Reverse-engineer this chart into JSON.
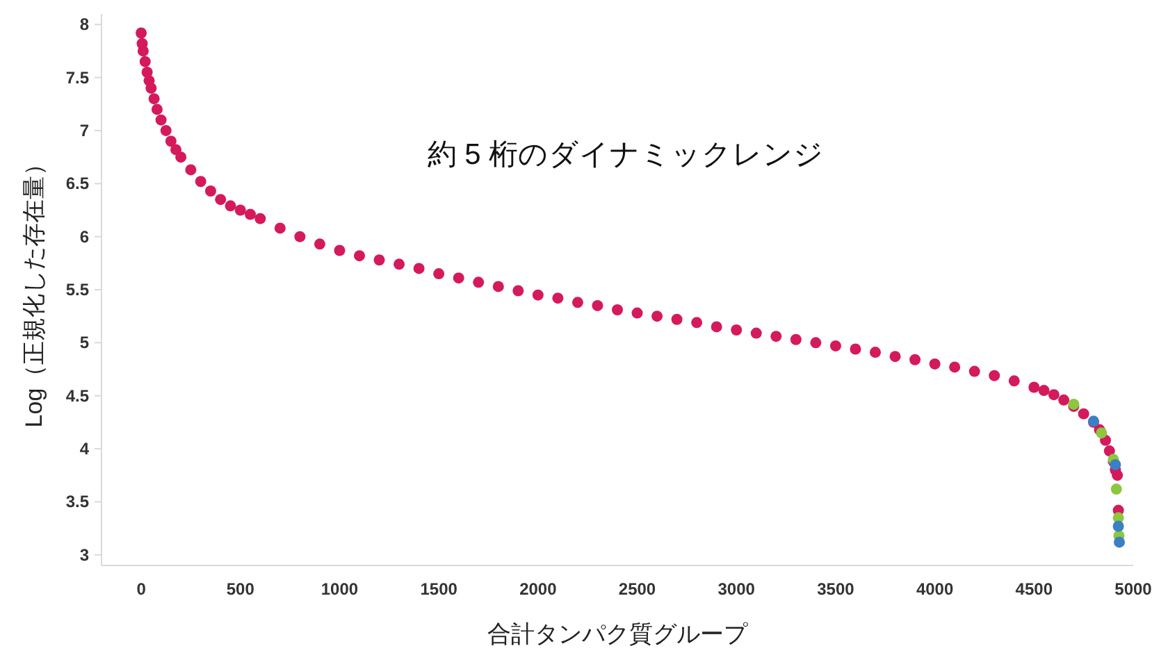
{
  "chart_data": {
    "type": "scatter",
    "xlabel": "合計タンパク質グループ",
    "ylabel": "Log（正規化した存在量）",
    "annotations": [
      "約 5 桁のダイナミックレンジ"
    ],
    "xlim": [
      -200,
      5000
    ],
    "ylim": [
      2.9,
      8.1
    ],
    "xticks": [
      0,
      500,
      1000,
      1500,
      2000,
      2500,
      3000,
      3500,
      4000,
      4500,
      5000
    ],
    "yticks": [
      3,
      3.5,
      4,
      4.5,
      5,
      5.5,
      6,
      6.5,
      7,
      7.5,
      8
    ],
    "grid": false,
    "marker": "circle",
    "series": [
      {
        "color": "#d41a5c",
        "x": [
          0,
          5,
          10,
          20,
          30,
          40,
          50,
          65,
          80,
          100,
          125,
          150,
          175,
          200,
          250,
          300,
          350,
          400,
          450,
          500,
          550,
          600,
          700,
          800,
          900,
          1000,
          1100,
          1200,
          1300,
          1400,
          1500,
          1600,
          1700,
          1800,
          1900,
          2000,
          2100,
          2200,
          2300,
          2400,
          2500,
          2600,
          2700,
          2800,
          2900,
          3000,
          3100,
          3200,
          3300,
          3400,
          3500,
          3600,
          3700,
          3800,
          3900,
          4000,
          4100,
          4200,
          4300,
          4400,
          4500,
          4550,
          4600,
          4650,
          4700,
          4750,
          4800,
          4830,
          4860,
          4880,
          4900,
          4910,
          4920,
          4925
        ],
        "values": [
          7.92,
          7.82,
          7.75,
          7.65,
          7.55,
          7.47,
          7.4,
          7.3,
          7.2,
          7.1,
          7.0,
          6.9,
          6.82,
          6.75,
          6.63,
          6.52,
          6.43,
          6.35,
          6.29,
          6.25,
          6.21,
          6.17,
          6.08,
          6.0,
          5.93,
          5.87,
          5.82,
          5.78,
          5.74,
          5.7,
          5.65,
          5.61,
          5.57,
          5.53,
          5.49,
          5.45,
          5.42,
          5.38,
          5.35,
          5.31,
          5.28,
          5.25,
          5.22,
          5.19,
          5.15,
          5.12,
          5.09,
          5.06,
          5.03,
          5.0,
          4.97,
          4.94,
          4.91,
          4.87,
          4.84,
          4.8,
          4.77,
          4.73,
          4.69,
          4.64,
          4.58,
          4.55,
          4.51,
          4.46,
          4.4,
          4.33,
          4.25,
          4.18,
          4.08,
          3.98,
          3.88,
          3.8,
          3.75,
          3.42
        ]
      },
      {
        "color": "#8dc63f",
        "x": [
          4700,
          4840,
          4900,
          4915,
          4925,
          4928
        ],
        "values": [
          4.42,
          4.15,
          3.9,
          3.62,
          3.35,
          3.18
        ]
      },
      {
        "color": "#3b7fc4",
        "x": [
          4800,
          4910,
          4925,
          4930
        ],
        "values": [
          4.26,
          3.85,
          3.27,
          3.12
        ]
      }
    ]
  }
}
